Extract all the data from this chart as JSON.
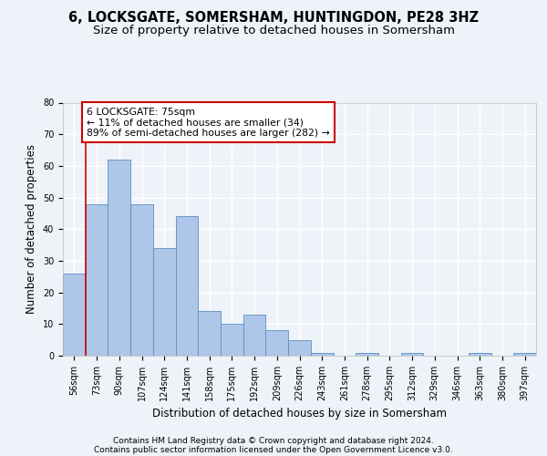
{
  "title1": "6, LOCKSGATE, SOMERSHAM, HUNTINGDON, PE28 3HZ",
  "title2": "Size of property relative to detached houses in Somersham",
  "xlabel": "Distribution of detached houses by size in Somersham",
  "ylabel": "Number of detached properties",
  "categories": [
    "56sqm",
    "73sqm",
    "90sqm",
    "107sqm",
    "124sqm",
    "141sqm",
    "158sqm",
    "175sqm",
    "192sqm",
    "209sqm",
    "226sqm",
    "243sqm",
    "261sqm",
    "278sqm",
    "295sqm",
    "312sqm",
    "329sqm",
    "346sqm",
    "363sqm",
    "380sqm",
    "397sqm"
  ],
  "values": [
    26,
    48,
    62,
    48,
    34,
    44,
    14,
    10,
    13,
    8,
    5,
    1,
    0,
    1,
    0,
    1,
    0,
    0,
    1,
    0,
    1
  ],
  "bar_color": "#aec6e8",
  "bar_edge_color": "#5a8fc2",
  "annotation_text": "6 LOCKSGATE: 75sqm\n← 11% of detached houses are smaller (34)\n89% of semi-detached houses are larger (282) →",
  "annotation_box_color": "#ffffff",
  "annotation_box_edge_color": "#cc0000",
  "property_line_color": "#cc0000",
  "ylim": [
    0,
    80
  ],
  "yticks": [
    0,
    10,
    20,
    30,
    40,
    50,
    60,
    70,
    80
  ],
  "footer1": "Contains HM Land Registry data © Crown copyright and database right 2024.",
  "footer2": "Contains public sector information licensed under the Open Government Licence v3.0.",
  "bg_color": "#eef2f9",
  "plot_bg_color": "#eef2f9",
  "grid_color": "#ffffff",
  "title_fontsize": 10.5,
  "subtitle_fontsize": 9.5,
  "axis_label_fontsize": 8.5,
  "tick_fontsize": 7,
  "footer_fontsize": 6.5,
  "annotation_fontsize": 7.8
}
